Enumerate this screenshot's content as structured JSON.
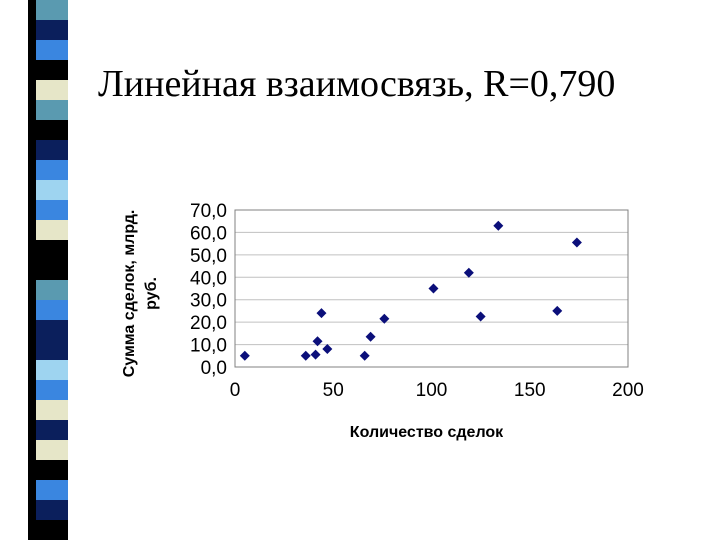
{
  "slide": {
    "title": "Линейная взаимосвязь, R=0,790"
  },
  "decor": {
    "strip_colors": [
      "#5a9ab0",
      "#0b1f5c",
      "#3a86e0",
      "#000000",
      "#e6e6c8",
      "#5a9ab0",
      "#000000",
      "#0b1f5c",
      "#3a86e0",
      "#9ed4f0",
      "#3a86e0",
      "#e6e6c8",
      "#000000",
      "#000000",
      "#5a9ab0",
      "#3a86e0",
      "#0b1f5c",
      "#0b1f5c",
      "#9ed4f0",
      "#3a86e0",
      "#e6e6c8",
      "#0b1f5c",
      "#e6e6c8",
      "#000000",
      "#3a86e0",
      "#0b1f5c",
      "#000000"
    ],
    "marker_color": "#0b0f7a",
    "grid_color": "#c0c0c0"
  },
  "chart_data": {
    "type": "scatter",
    "title": "",
    "xlabel": "Количество сделок",
    "ylabel": "Сумма сделок, млрд. руб.",
    "xlim": [
      0,
      200
    ],
    "ylim": [
      0,
      70
    ],
    "xticks": [
      "0",
      "50",
      "100",
      "150",
      "200"
    ],
    "yticks": [
      "0,0",
      "10,0",
      "20,0",
      "30,0",
      "40,0",
      "50,0",
      "60,0",
      "70,0"
    ],
    "grid": true,
    "marker": "diamond",
    "points": [
      {
        "x": 5,
        "y": 5
      },
      {
        "x": 36,
        "y": 5
      },
      {
        "x": 41,
        "y": 5.5
      },
      {
        "x": 42,
        "y": 11.5
      },
      {
        "x": 44,
        "y": 24
      },
      {
        "x": 47,
        "y": 8
      },
      {
        "x": 66,
        "y": 5
      },
      {
        "x": 69,
        "y": 13.5
      },
      {
        "x": 76,
        "y": 21.5
      },
      {
        "x": 101,
        "y": 35
      },
      {
        "x": 119,
        "y": 42
      },
      {
        "x": 125,
        "y": 22.5
      },
      {
        "x": 134,
        "y": 63
      },
      {
        "x": 164,
        "y": 25
      },
      {
        "x": 174,
        "y": 55.5
      }
    ]
  }
}
